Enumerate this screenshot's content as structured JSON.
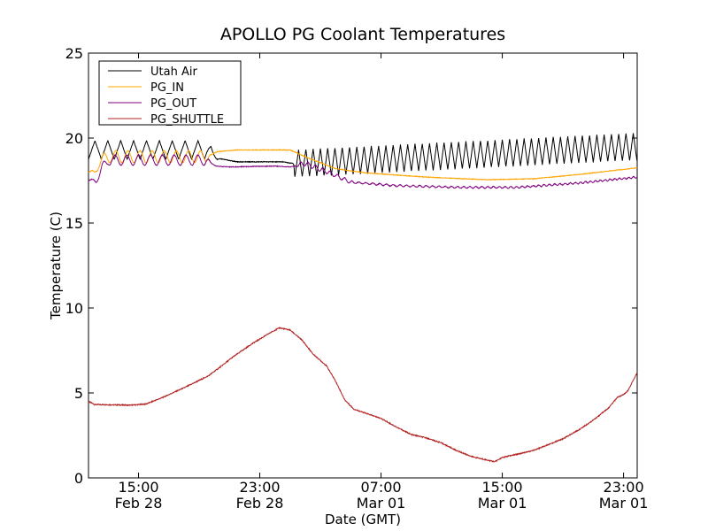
{
  "chart_data": {
    "type": "line",
    "title": "APOLLO PG Coolant Temperatures",
    "xlabel": "Date (GMT)",
    "ylabel": "Temperature (C)",
    "xlim": [
      11.7,
      47.9
    ],
    "ylim": [
      0,
      25
    ],
    "grid": false,
    "legend_position": "top-left",
    "y_ticks": [
      {
        "value": 0,
        "label": "0"
      },
      {
        "value": 5,
        "label": "5"
      },
      {
        "value": 10,
        "label": "10"
      },
      {
        "value": 15,
        "label": "15"
      },
      {
        "value": 20,
        "label": "20"
      },
      {
        "value": 25,
        "label": "25"
      }
    ],
    "x_ticks": [
      {
        "value": 15,
        "line1": "15:00",
        "line2": "Feb 28"
      },
      {
        "value": 23,
        "line1": "23:00",
        "line2": "Feb 28"
      },
      {
        "value": 31,
        "line1": "07:00",
        "line2": "Mar 01"
      },
      {
        "value": 39,
        "line1": "15:00",
        "line2": "Mar 01"
      },
      {
        "value": 47,
        "line1": "23:00",
        "line2": "Mar 01"
      }
    ],
    "x_units": "hours since Feb 28 00:00 GMT",
    "series": [
      {
        "name": "Utah Air",
        "color": "#000000",
        "style": "sawtooth",
        "points": [
          [
            11.7,
            19.3
          ],
          [
            19.5,
            19.3
          ],
          [
            20.3,
            18.8
          ],
          [
            21.5,
            18.6
          ],
          [
            24.5,
            18.6
          ],
          [
            25.2,
            18.5
          ],
          [
            47.9,
            19.5
          ]
        ],
        "osc_amplitude": [
          [
            11.7,
            0.55
          ],
          [
            19.5,
            0.55
          ],
          [
            19.9,
            0.3
          ],
          [
            20.4,
            0
          ],
          [
            25.2,
            0
          ],
          [
            25.3,
            0.8
          ],
          [
            47.9,
            0.8
          ]
        ],
        "osc_period": [
          [
            11.7,
            0.85
          ],
          [
            20.0,
            0.85
          ],
          [
            25.3,
            0.48
          ],
          [
            47.9,
            0.48
          ]
        ]
      },
      {
        "name": "PG_IN",
        "color": "#ffa500",
        "style": "smooth",
        "points": [
          [
            11.7,
            18.0
          ],
          [
            12.1,
            18.0
          ],
          [
            12.4,
            18.5
          ],
          [
            12.9,
            18.9
          ],
          [
            19.5,
            18.9
          ],
          [
            20.2,
            19.2
          ],
          [
            21.5,
            19.3
          ],
          [
            25.0,
            19.3
          ],
          [
            26.0,
            18.9
          ],
          [
            28.0,
            18.2
          ],
          [
            30.0,
            17.95
          ],
          [
            34.0,
            17.7
          ],
          [
            38.0,
            17.55
          ],
          [
            41.0,
            17.6
          ],
          [
            44.0,
            17.85
          ],
          [
            47.9,
            18.25
          ]
        ],
        "osc_amplitude": [
          [
            11.7,
            0
          ],
          [
            12.6,
            0.35
          ],
          [
            19.4,
            0.35
          ],
          [
            19.8,
            0
          ],
          [
            47.9,
            0
          ]
        ],
        "osc_period": [
          [
            11.7,
            0.8
          ],
          [
            47.9,
            0.8
          ]
        ]
      },
      {
        "name": "PG_OUT",
        "color": "#800080",
        "style": "smooth",
        "points": [
          [
            11.7,
            17.5
          ],
          [
            12.2,
            17.5
          ],
          [
            12.6,
            18.2
          ],
          [
            13.0,
            18.7
          ],
          [
            19.5,
            18.7
          ],
          [
            20.1,
            18.35
          ],
          [
            21.0,
            18.3
          ],
          [
            24.0,
            18.35
          ],
          [
            25.0,
            18.3
          ],
          [
            26.0,
            18.5
          ],
          [
            27.5,
            18.0
          ],
          [
            29.0,
            17.4
          ],
          [
            32.0,
            17.2
          ],
          [
            36.0,
            17.1
          ],
          [
            40.0,
            17.1
          ],
          [
            44.0,
            17.35
          ],
          [
            47.9,
            17.7
          ]
        ],
        "osc_amplitude": [
          [
            11.7,
            0
          ],
          [
            12.6,
            0.3
          ],
          [
            19.4,
            0.3
          ],
          [
            19.8,
            0
          ],
          [
            25.2,
            0
          ],
          [
            25.7,
            0.15
          ],
          [
            28.8,
            0.1
          ],
          [
            29.5,
            0.05
          ],
          [
            47.9,
            0.05
          ]
        ],
        "osc_period": [
          [
            11.7,
            0.78
          ],
          [
            25.0,
            0.78
          ],
          [
            25.5,
            0.5
          ],
          [
            47.9,
            0.3
          ]
        ]
      },
      {
        "name": "PG_SHUTTLE",
        "color": "#b22222",
        "style": "smooth",
        "points": [
          [
            11.7,
            4.5
          ],
          [
            12.1,
            4.32
          ],
          [
            14.5,
            4.28
          ],
          [
            15.5,
            4.35
          ],
          [
            16.5,
            4.7
          ],
          [
            18.0,
            5.3
          ],
          [
            19.6,
            6.0
          ],
          [
            20.5,
            6.6
          ],
          [
            21.2,
            7.1
          ],
          [
            22.5,
            7.9
          ],
          [
            23.8,
            8.6
          ],
          [
            24.3,
            8.83
          ],
          [
            25.0,
            8.7
          ],
          [
            25.8,
            8.1
          ],
          [
            26.5,
            7.3
          ],
          [
            27.4,
            6.6
          ],
          [
            28.0,
            5.7
          ],
          [
            28.6,
            4.6
          ],
          [
            29.2,
            4.05
          ],
          [
            30.0,
            3.8
          ],
          [
            31.0,
            3.5
          ],
          [
            32.0,
            3.0
          ],
          [
            33.0,
            2.55
          ],
          [
            34.0,
            2.35
          ],
          [
            35.0,
            2.05
          ],
          [
            36.0,
            1.6
          ],
          [
            37.0,
            1.25
          ],
          [
            38.0,
            1.05
          ],
          [
            38.5,
            0.95
          ],
          [
            39.0,
            1.2
          ],
          [
            40.0,
            1.4
          ],
          [
            41.0,
            1.6
          ],
          [
            42.0,
            1.95
          ],
          [
            43.0,
            2.3
          ],
          [
            44.0,
            2.8
          ],
          [
            45.0,
            3.4
          ],
          [
            46.0,
            4.1
          ],
          [
            46.6,
            4.75
          ],
          [
            47.0,
            4.9
          ],
          [
            47.3,
            5.15
          ],
          [
            47.9,
            6.2
          ]
        ],
        "osc_amplitude": [
          [
            11.7,
            0
          ],
          [
            47.9,
            0
          ]
        ],
        "osc_period": [
          [
            11.7,
            1
          ],
          [
            47.9,
            1
          ]
        ]
      }
    ]
  }
}
